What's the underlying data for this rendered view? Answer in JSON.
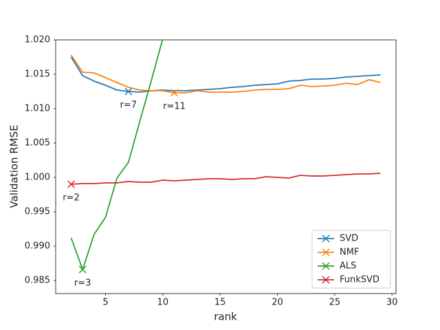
{
  "chart_data": {
    "type": "line",
    "xlabel": "rank",
    "ylabel": "Validation RMSE",
    "x": [
      2,
      3,
      4,
      5,
      6,
      7,
      8,
      9,
      10,
      11,
      12,
      13,
      14,
      15,
      16,
      17,
      18,
      19,
      20,
      21,
      22,
      23,
      24,
      25,
      26,
      27,
      28,
      29
    ],
    "series": [
      {
        "name": "SVD",
        "color": "#1f77b4",
        "values": [
          1.0175,
          1.0148,
          1.014,
          1.0134,
          1.0127,
          1.0125,
          1.0124,
          1.0126,
          1.0127,
          1.0126,
          1.0126,
          1.0127,
          1.0128,
          1.0129,
          1.0131,
          1.0132,
          1.0134,
          1.0135,
          1.0136,
          1.014,
          1.0141,
          1.0143,
          1.0143,
          1.0144,
          1.0146,
          1.0147,
          1.0148,
          1.0149
        ]
      },
      {
        "name": "NMF",
        "color": "#ff7f0e",
        "values": [
          1.0178,
          1.0153,
          1.0152,
          1.0145,
          1.0138,
          1.0131,
          1.0127,
          1.0126,
          1.0126,
          1.0123,
          1.0123,
          1.0126,
          1.0124,
          1.0124,
          1.0124,
          1.0125,
          1.0127,
          1.0128,
          1.0128,
          1.0129,
          1.0134,
          1.0132,
          1.0133,
          1.0134,
          1.0137,
          1.0135,
          1.0142,
          1.0138
        ]
      },
      {
        "name": "ALS",
        "color": "#2ca02c",
        "values": [
          0.9912,
          0.9866,
          0.9917,
          0.9942,
          0.9999,
          1.0022,
          1.0082,
          1.0141,
          1.0202,
          null,
          null,
          null,
          null,
          null,
          null,
          null,
          null,
          null,
          null,
          null,
          null,
          null,
          null,
          null,
          null,
          null,
          null,
          null
        ]
      },
      {
        "name": "FunkSVD",
        "color": "#d62728",
        "values": [
          0.999,
          0.9991,
          0.9991,
          0.9992,
          0.9992,
          0.9994,
          0.9993,
          0.9993,
          0.9996,
          0.9995,
          0.9996,
          0.9997,
          0.9998,
          0.9998,
          0.9997,
          0.9998,
          0.9998,
          1.0001,
          1.0,
          0.9999,
          1.0003,
          1.0002,
          1.0002,
          1.0003,
          1.0004,
          1.0005,
          1.0005,
          1.0006
        ]
      }
    ],
    "annotations": [
      {
        "text": "r=7",
        "x": 7,
        "y": 1.0125,
        "color": "#1f77b4"
      },
      {
        "text": "r=11",
        "x": 11,
        "y": 1.0123,
        "color": "#ff7f0e"
      },
      {
        "text": "r=3",
        "x": 3,
        "y": 0.9866,
        "color": "#2ca02c"
      },
      {
        "text": "r=2",
        "x": 2,
        "y": 0.999,
        "color": "#d62728"
      }
    ],
    "xlim": [
      0.65,
      30.35
    ],
    "ylim": [
      0.9831,
      1.02
    ],
    "xticks": [
      5,
      10,
      15,
      20,
      25,
      30
    ],
    "yticks": [
      {
        "value": 0.985,
        "label": "0.985"
      },
      {
        "value": 0.99,
        "label": "0.990"
      },
      {
        "value": 0.995,
        "label": "0.995"
      },
      {
        "value": 1,
        "label": "1.000"
      },
      {
        "value": 1.005,
        "label": "1.005"
      },
      {
        "value": 1.01,
        "label": "1.010"
      },
      {
        "value": 1.015,
        "label": "1.015"
      },
      {
        "value": 1.02,
        "label": "1.020"
      }
    ],
    "legend": "lower right",
    "grid": false
  }
}
